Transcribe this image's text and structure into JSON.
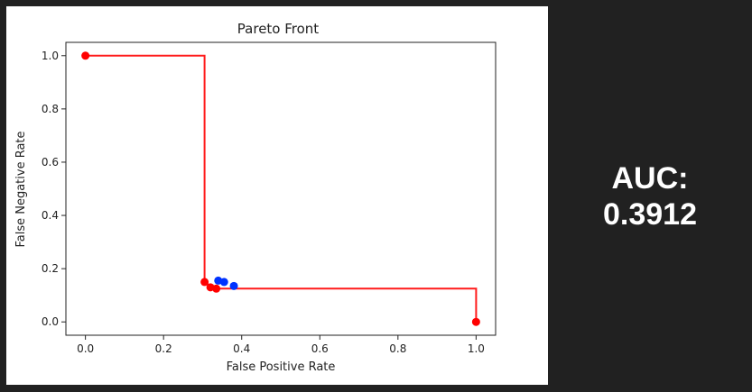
{
  "chart_data": {
    "type": "scatter",
    "title": "Pareto Front",
    "xlabel": "False Positive Rate",
    "ylabel": "False Negative Rate",
    "xlim": [
      -0.05,
      1.05
    ],
    "ylim": [
      -0.05,
      1.05
    ],
    "xticks": [
      0.0,
      0.2,
      0.4,
      0.6,
      0.8,
      1.0
    ],
    "xtick_labels": [
      "0.0",
      "0.2",
      "0.4",
      "0.6",
      "0.8",
      "1.0"
    ],
    "yticks": [
      0.0,
      0.2,
      0.4,
      0.6,
      0.8,
      1.0
    ],
    "ytick_labels": [
      "0.0",
      "0.2",
      "0.4",
      "0.6",
      "0.8",
      "1.0"
    ],
    "grid": false,
    "step_line": {
      "color": "#ff1a1a",
      "x": [
        0.0,
        0.305,
        0.305,
        0.32,
        0.335,
        0.335,
        1.0,
        1.0
      ],
      "y": [
        1.0,
        1.0,
        0.15,
        0.135,
        0.125,
        0.125,
        0.125,
        0.0
      ]
    },
    "series": [
      {
        "color": "#ff0000",
        "points": [
          {
            "x": 0.0,
            "y": 1.0
          },
          {
            "x": 0.305,
            "y": 0.15
          },
          {
            "x": 0.32,
            "y": 0.13
          },
          {
            "x": 0.335,
            "y": 0.125
          },
          {
            "x": 1.0,
            "y": 0.0
          }
        ]
      },
      {
        "color": "#0033ff",
        "points": [
          {
            "x": 0.34,
            "y": 0.155
          },
          {
            "x": 0.355,
            "y": 0.15
          },
          {
            "x": 0.38,
            "y": 0.135
          }
        ]
      }
    ]
  },
  "auc": {
    "label": "AUC:",
    "value": "0.3912"
  }
}
